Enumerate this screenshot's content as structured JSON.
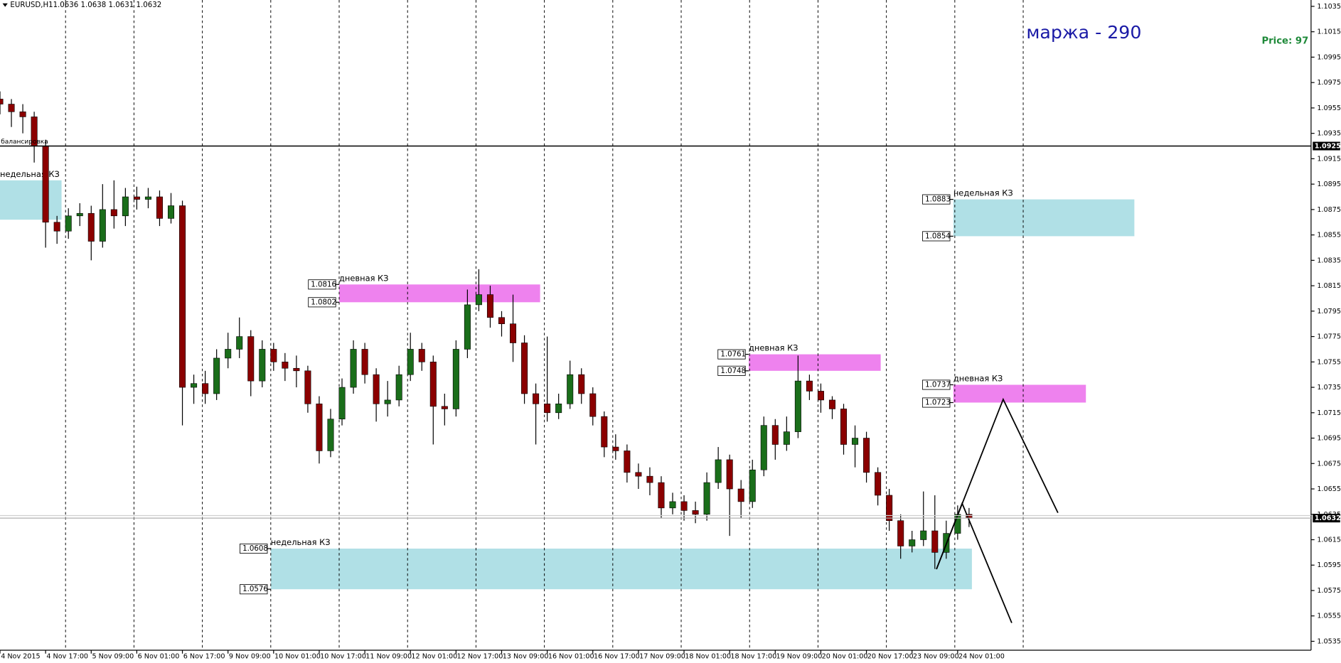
{
  "chart_data": {
    "type": "candlestick",
    "symbol": "EURUSD,H1",
    "ohlc_text": "1.0636 1.0638 1.0631 1.0632",
    "margin_text": "маржа - 290",
    "price_text": "Price: 97",
    "xlim": [
      0,
      460
    ],
    "ylim": [
      1.0528,
      1.104
    ],
    "yticks": [
      1.1035,
      1.1015,
      1.0995,
      1.0975,
      1.0955,
      1.0935,
      1.0915,
      1.0895,
      1.0875,
      1.0855,
      1.0835,
      1.0815,
      1.0795,
      1.0775,
      1.0755,
      1.0735,
      1.0715,
      1.0695,
      1.0675,
      1.0655,
      1.0635,
      1.0615,
      1.0595,
      1.0575,
      1.0555,
      1.0535
    ],
    "xticks": [
      {
        "value": 0,
        "label": "4 Nov 2015"
      },
      {
        "value": 16,
        "label": "4 Nov 17:00"
      },
      {
        "value": 32,
        "label": "5 Nov 09:00"
      },
      {
        "value": 48,
        "label": "6 Nov 01:00"
      },
      {
        "value": 64,
        "label": "6 Nov 17:00"
      },
      {
        "value": 80,
        "label": "9 Nov 09:00"
      },
      {
        "value": 96,
        "label": "10 Nov 01:00"
      },
      {
        "value": 112,
        "label": "10 Nov 17:00"
      },
      {
        "value": 128,
        "label": "11 Nov 09:00"
      },
      {
        "value": 144,
        "label": "12 Nov 01:00"
      },
      {
        "value": 160,
        "label": "12 Nov 17:00"
      },
      {
        "value": 176,
        "label": "13 Nov 09:00"
      },
      {
        "value": 192,
        "label": "16 Nov 01:00"
      },
      {
        "value": 208,
        "label": "16 Nov 17:00"
      },
      {
        "value": 224,
        "label": "17 Nov 09:00"
      },
      {
        "value": 240,
        "label": "18 Nov 01:00"
      },
      {
        "value": 256,
        "label": "18 Nov 17:00"
      },
      {
        "value": 272,
        "label": "19 Nov 09:00"
      },
      {
        "value": 288,
        "label": "20 Nov 01:00"
      },
      {
        "value": 304,
        "label": "20 Nov 17:00"
      },
      {
        "value": 320,
        "label": "23 Nov 09:00"
      },
      {
        "value": 336,
        "label": "24 Nov 01:00"
      }
    ],
    "period_separators": [
      23,
      47,
      71,
      95,
      119,
      143,
      167,
      191,
      215,
      239,
      263,
      287,
      311,
      335,
      359
    ],
    "up_color": "#1a6e1a",
    "down_color": "#8b0000",
    "x": [
      0,
      4,
      8,
      12,
      16,
      20,
      24,
      28,
      32,
      36,
      40,
      44,
      48,
      52,
      56,
      60,
      64,
      68,
      72,
      76,
      80,
      84,
      88,
      92,
      96,
      100,
      104,
      108,
      112,
      116,
      120,
      124,
      128,
      132,
      136,
      140,
      144,
      148,
      152,
      156,
      160,
      164,
      168,
      172,
      176,
      180,
      184,
      188,
      192,
      196,
      200,
      204,
      208,
      212,
      216,
      220,
      224,
      228,
      232,
      236,
      240,
      244,
      248,
      252,
      256,
      260,
      264,
      268,
      272,
      276,
      280,
      284,
      288,
      292,
      296,
      300,
      304,
      308,
      312,
      316,
      320,
      324,
      328,
      332,
      336,
      340
    ],
    "open": [
      1.0962,
      1.0958,
      1.0952,
      1.0948,
      1.0925,
      1.0865,
      1.0858,
      1.087,
      1.0872,
      1.085,
      1.0875,
      1.087,
      1.0885,
      1.0883,
      1.0885,
      1.0868,
      1.0878,
      1.0735,
      1.0738,
      1.073,
      1.0758,
      1.0765,
      1.0775,
      1.074,
      1.0765,
      1.0755,
      1.075,
      1.0748,
      1.0722,
      1.0685,
      1.071,
      1.0735,
      1.0765,
      1.0745,
      1.0722,
      1.0725,
      1.0745,
      1.0765,
      1.0755,
      1.072,
      1.0718,
      1.0765,
      1.08,
      1.0808,
      1.079,
      1.0785,
      1.077,
      1.073,
      1.0722,
      1.0715,
      1.0722,
      1.0745,
      1.073,
      1.0712,
      1.0688,
      1.0685,
      1.0668,
      1.0665,
      1.066,
      1.064,
      1.0645,
      1.0638,
      1.0635,
      1.066,
      1.0678,
      1.0655,
      1.0645,
      1.067,
      1.0705,
      1.069,
      1.07,
      1.074,
      1.0732,
      1.0725,
      1.0718,
      1.069,
      1.0695,
      1.0668,
      1.065,
      1.063,
      1.061,
      1.0615,
      1.0622,
      1.0605,
      1.062,
      1.0635
    ],
    "high": [
      1.0968,
      1.0962,
      1.0958,
      1.0952,
      1.093,
      1.087,
      1.0876,
      1.088,
      1.0878,
      1.0895,
      1.0898,
      1.0892,
      1.0893,
      1.0892,
      1.089,
      1.0888,
      1.0882,
      1.0745,
      1.0748,
      1.0765,
      1.0778,
      1.079,
      1.078,
      1.0772,
      1.077,
      1.0762,
      1.076,
      1.0752,
      1.0728,
      1.0718,
      1.0742,
      1.0772,
      1.077,
      1.075,
      1.074,
      1.0752,
      1.0778,
      1.077,
      1.076,
      1.073,
      1.0772,
      1.0812,
      1.0828,
      1.0815,
      1.0795,
      1.0808,
      1.0776,
      1.0738,
      1.0775,
      1.073,
      1.0756,
      1.075,
      1.0735,
      1.0716,
      1.0698,
      1.069,
      1.0675,
      1.0672,
      1.0665,
      1.0652,
      1.065,
      1.0645,
      1.0668,
      1.0688,
      1.0682,
      1.0662,
      1.0678,
      1.0712,
      1.071,
      1.0712,
      1.076,
      1.0745,
      1.0738,
      1.0728,
      1.0722,
      1.0705,
      1.07,
      1.0672,
      1.0655,
      1.0635,
      1.0622,
      1.0653,
      1.065,
      1.063,
      1.0642,
      1.064
    ],
    "low": [
      1.095,
      1.094,
      1.0935,
      1.0912,
      1.0845,
      1.0848,
      1.0852,
      1.0862,
      1.0835,
      1.0845,
      1.086,
      1.0862,
      1.0875,
      1.0876,
      1.0862,
      1.0864,
      1.0705,
      1.0722,
      1.0722,
      1.0725,
      1.075,
      1.0758,
      1.0728,
      1.0735,
      1.0748,
      1.074,
      1.0735,
      1.0715,
      1.0675,
      1.068,
      1.0705,
      1.073,
      1.0738,
      1.0708,
      1.0712,
      1.072,
      1.074,
      1.0748,
      1.069,
      1.0705,
      1.0712,
      1.0758,
      1.0795,
      1.0782,
      1.0775,
      1.0755,
      1.0722,
      1.069,
      1.0708,
      1.071,
      1.0718,
      1.0722,
      1.0705,
      1.068,
      1.0678,
      1.066,
      1.0655,
      1.065,
      1.0632,
      1.0635,
      1.063,
      1.0628,
      1.063,
      1.0655,
      1.0618,
      1.0632,
      1.064,
      1.0665,
      1.0678,
      1.0685,
      1.0695,
      1.0725,
      1.0715,
      1.071,
      1.0682,
      1.0672,
      1.066,
      1.0642,
      1.0622,
      1.06,
      1.0605,
      1.061,
      1.0592,
      1.06,
      1.0615,
      1.0625
    ],
    "close": [
      1.0958,
      1.0952,
      1.0948,
      1.0925,
      1.0865,
      1.0858,
      1.087,
      1.0872,
      1.085,
      1.0875,
      1.087,
      1.0885,
      1.0883,
      1.0885,
      1.0868,
      1.0878,
      1.0735,
      1.0738,
      1.073,
      1.0758,
      1.0765,
      1.0775,
      1.074,
      1.0765,
      1.0755,
      1.075,
      1.0748,
      1.0722,
      1.0685,
      1.071,
      1.0735,
      1.0765,
      1.0745,
      1.0722,
      1.0725,
      1.0745,
      1.0765,
      1.0755,
      1.072,
      1.0718,
      1.0765,
      1.08,
      1.0808,
      1.079,
      1.0785,
      1.077,
      1.073,
      1.0722,
      1.0715,
      1.0722,
      1.0745,
      1.073,
      1.0712,
      1.0688,
      1.0685,
      1.0668,
      1.0665,
      1.066,
      1.064,
      1.0645,
      1.0638,
      1.0635,
      1.066,
      1.0678,
      1.0655,
      1.0645,
      1.067,
      1.0705,
      1.069,
      1.07,
      1.074,
      1.0732,
      1.0725,
      1.0718,
      1.069,
      1.0695,
      1.0668,
      1.065,
      1.063,
      1.061,
      1.0615,
      1.0622,
      1.0605,
      1.062,
      1.0635,
      1.0632
    ],
    "hlines": [
      {
        "value": 1.0925,
        "label": "балансировка",
        "color": "#000000"
      }
    ],
    "current_price": 1.0632,
    "zones": [
      {
        "x": [
          0,
          21.6
        ],
        "top": 1.0898,
        "bottom": 1.0867,
        "label": "недельная КЗ",
        "color": "#b0e0e6",
        "show_tags": false
      },
      {
        "x": [
          119,
          189.5
        ],
        "top": 1.0816,
        "bottom": 1.0802,
        "label": "дневная КЗ",
        "color": "#ee82ee",
        "show_tags": true
      },
      {
        "x": [
          262.7,
          309
        ],
        "top": 1.0761,
        "bottom": 1.0748,
        "label": "дневная КЗ",
        "color": "#ee82ee",
        "show_tags": true
      },
      {
        "x": [
          334.5,
          381
        ],
        "top": 1.0737,
        "bottom": 1.0723,
        "label": "дневная КЗ",
        "color": "#ee82ee",
        "show_tags": true
      },
      {
        "x": [
          334.5,
          398
        ],
        "top": 1.0883,
        "bottom": 1.0854,
        "label": "недельная КЗ",
        "color": "#b0e0e6",
        "show_tags": true
      },
      {
        "x": [
          95,
          341
        ],
        "top": 1.0608,
        "bottom": 1.0576,
        "label": "недельная КЗ",
        "color": "#b0e0e6",
        "show_tags": true
      }
    ]
  }
}
